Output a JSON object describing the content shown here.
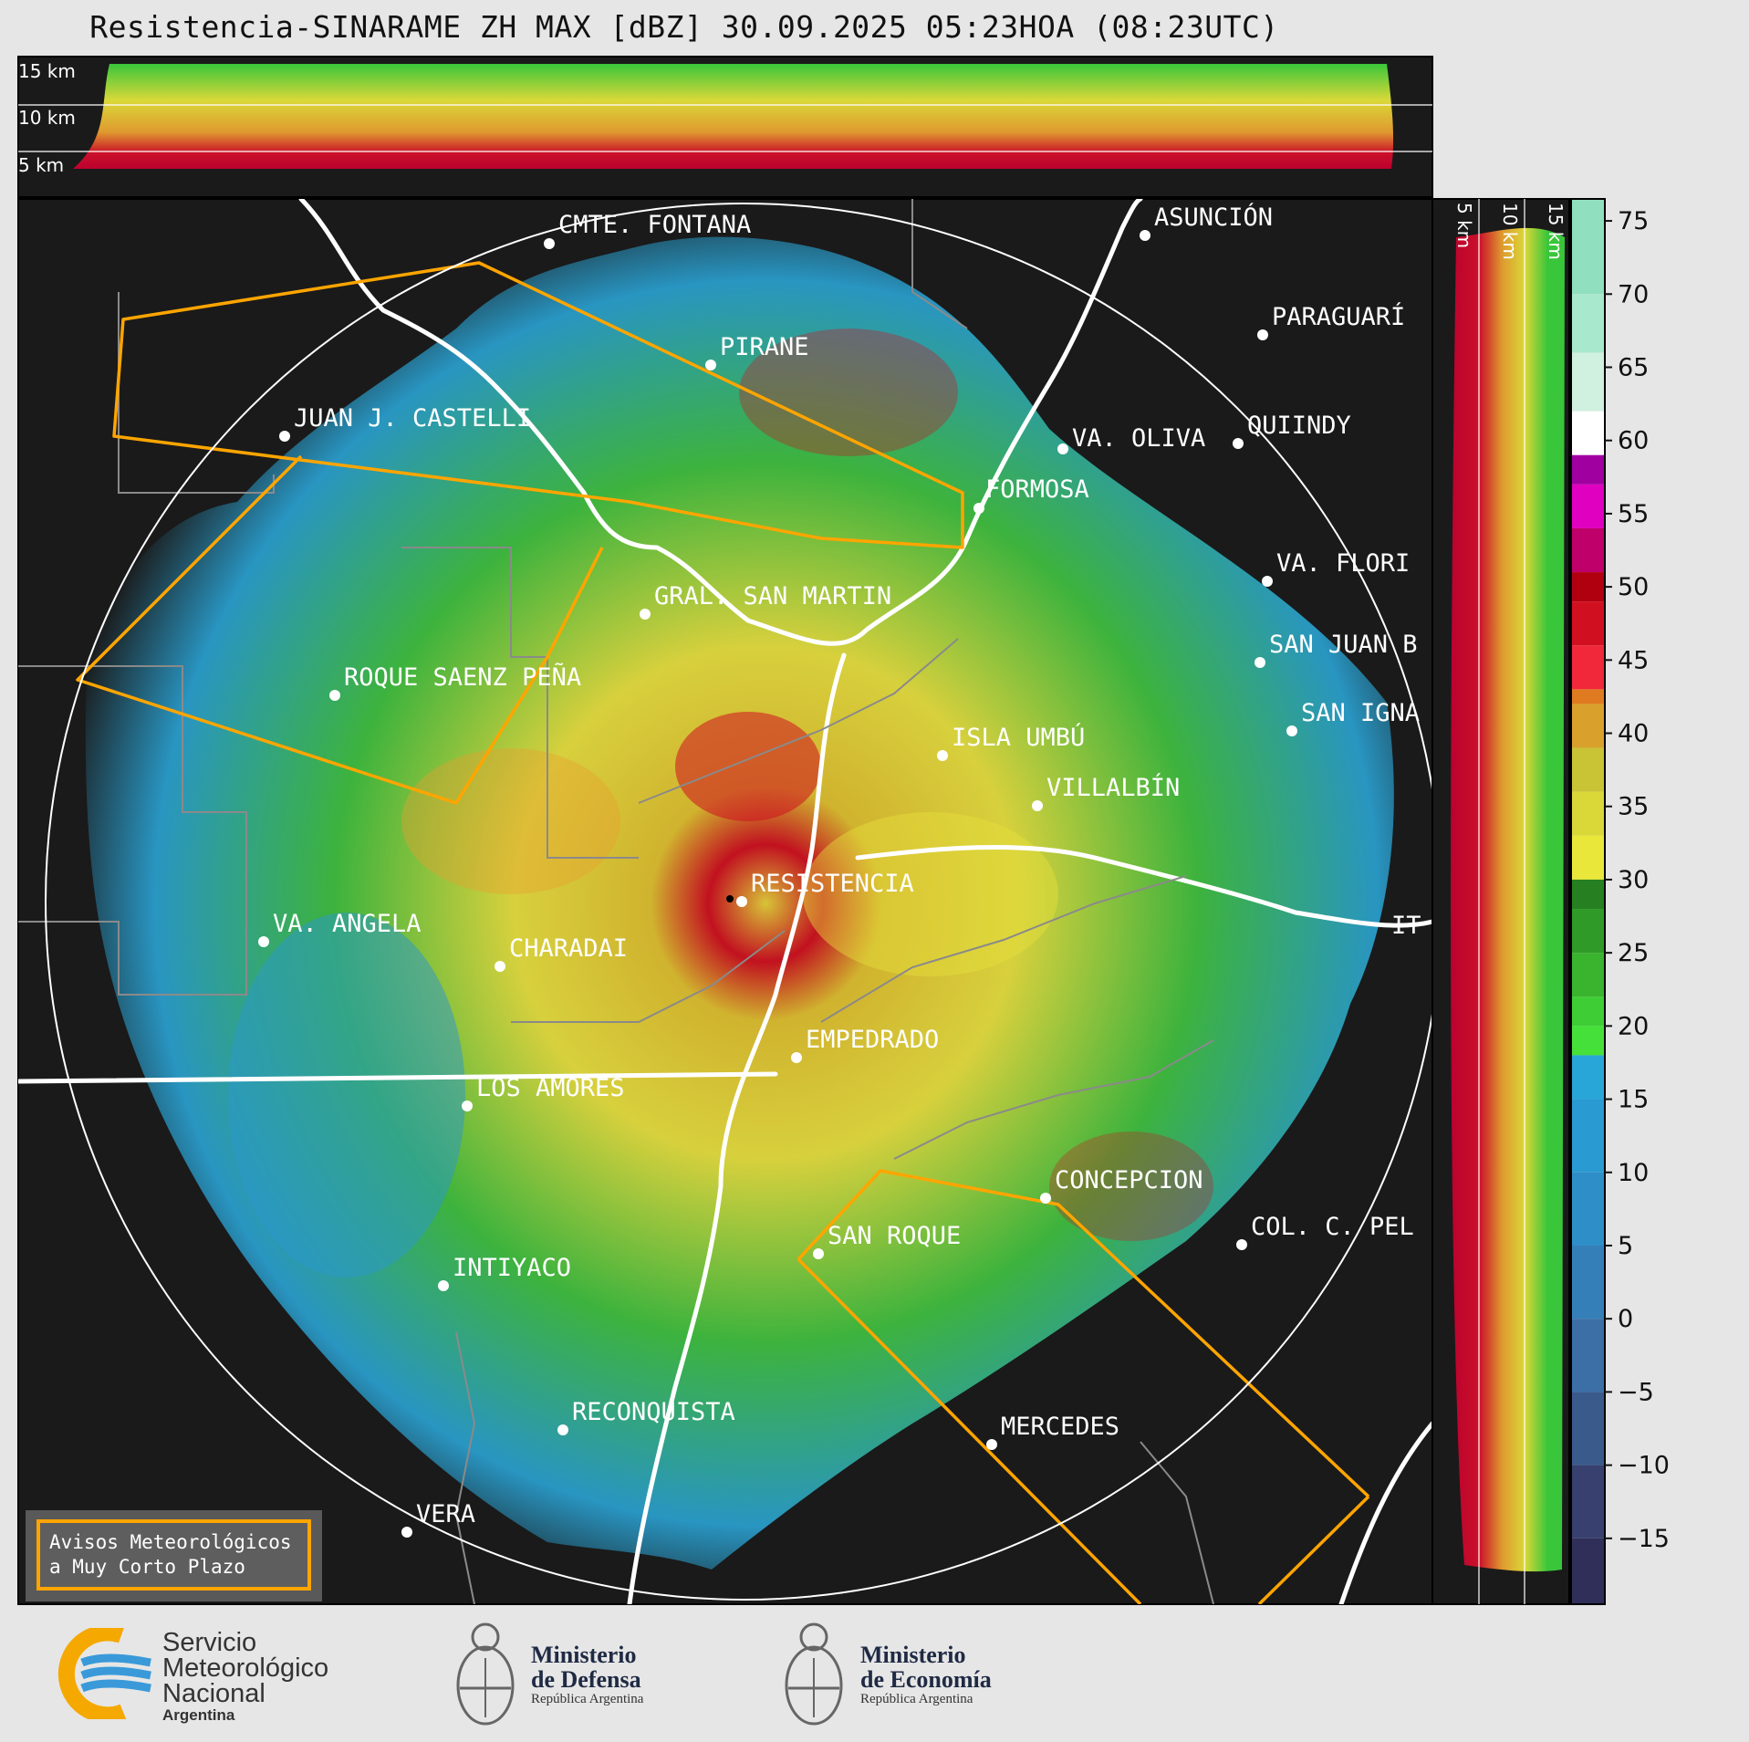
{
  "header": {
    "title": "Resistencia-SINARAME ZH MAX [dBZ] 30.09.2025 05:23HOA (08:23UTC)"
  },
  "top_section": {
    "height_labels": [
      "15 km",
      "10 km",
      "5 km"
    ]
  },
  "side_section": {
    "height_labels": [
      "5 km",
      "10 km",
      "15 km"
    ]
  },
  "colorbar": {
    "ticks": [
      "75",
      "70",
      "65",
      "60",
      "55",
      "50",
      "45",
      "40",
      "35",
      "30",
      "25",
      "20",
      "15",
      "10",
      "5",
      "0",
      "−5",
      "−10",
      "−15"
    ],
    "unit": "dBZ"
  },
  "places": [
    {
      "name": "CMTE. FONTANA"
    },
    {
      "name": "ASUNCIÓN"
    },
    {
      "name": "PARAGUARÍ"
    },
    {
      "name": "PIRANE"
    },
    {
      "name": "JUAN J. CASTELLI"
    },
    {
      "name": "VA. OLIVA"
    },
    {
      "name": "QUIINDY"
    },
    {
      "name": "FORMOSA"
    },
    {
      "name": "VA. FLORI"
    },
    {
      "name": "GRAL. SAN MARTIN"
    },
    {
      "name": "SAN JUAN B"
    },
    {
      "name": "ROQUE SAENZ PEÑA"
    },
    {
      "name": "SAN IGNA"
    },
    {
      "name": "ISLA UMBÚ"
    },
    {
      "name": "VILLALBÍN"
    },
    {
      "name": "RESISTENCIA"
    },
    {
      "name": "IT"
    },
    {
      "name": "VA. ANGELA"
    },
    {
      "name": "CHARADAI"
    },
    {
      "name": "EMPEDRADO"
    },
    {
      "name": "LOS AMORES"
    },
    {
      "name": "CONCEPCION"
    },
    {
      "name": "SAN ROQUE"
    },
    {
      "name": "COL. C. PEL"
    },
    {
      "name": "INTIYACO"
    },
    {
      "name": "RECONQUISTA"
    },
    {
      "name": "MERCEDES"
    },
    {
      "name": "VERA"
    }
  ],
  "badge": {
    "line1": "Avisos Meteorológicos",
    "line2": "a Muy Corto Plazo"
  },
  "logos": {
    "smn": [
      "Servicio",
      "Meteorológico",
      "Nacional",
      "Argentina"
    ],
    "defensa": [
      "Ministerio",
      "de Defensa",
      "República Argentina"
    ],
    "economia": [
      "Ministerio",
      "de Economía",
      "República Argentina"
    ]
  },
  "colors": {
    "background": "#1a1a1a",
    "border_province": "#ffa500",
    "rivers": "#ffffff",
    "range_ring": "#ffffff"
  }
}
